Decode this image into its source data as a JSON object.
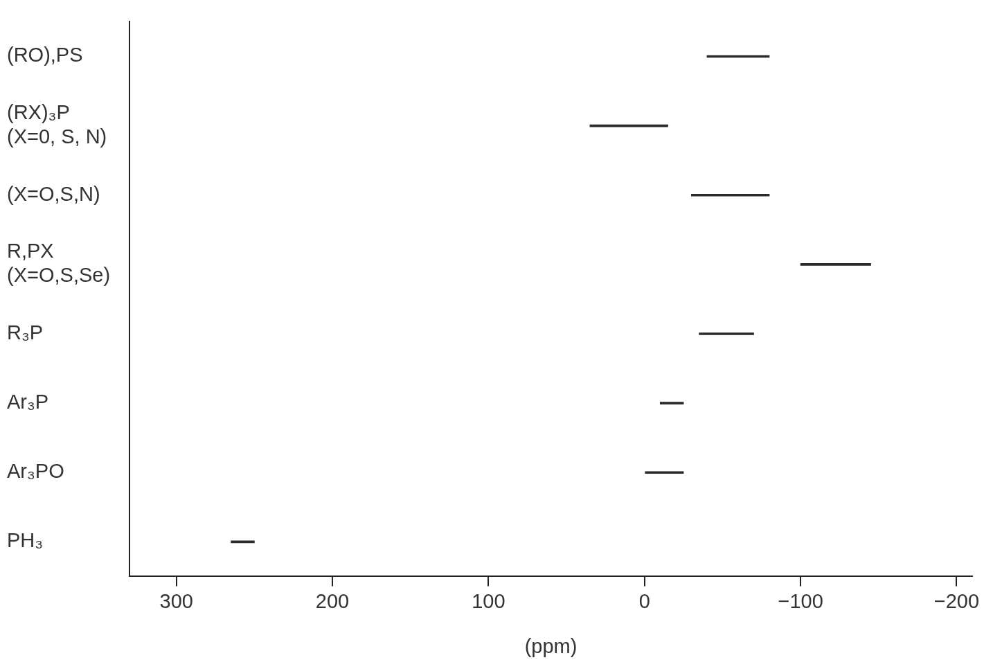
{
  "chart_data": {
    "type": "bar",
    "orientation": "horizontal",
    "xlabel": "(ppm)",
    "categories": [
      "(RO),PS",
      "(RX)₃P\n(X=0, S, N)",
      "(X=O,S,N)",
      "R,PX\n(X=O,S,Se)",
      "R₃P",
      "Ar₃P",
      "Ar₃PO",
      "PH₃"
    ],
    "base": [
      -40,
      35,
      -30,
      -100,
      -35,
      -10,
      0,
      265
    ],
    "values": [
      -40,
      -50,
      -50,
      -45,
      -35,
      -15,
      -25,
      -15
    ],
    "color": "#2a2a2a",
    "xlim": [
      330,
      -210
    ],
    "xticks": [
      300,
      200,
      100,
      0,
      {
        "value": -100,
        "label": "−100"
      },
      {
        "value": -200,
        "label": "−200"
      }
    ],
    "grid": false,
    "legend": false
  }
}
